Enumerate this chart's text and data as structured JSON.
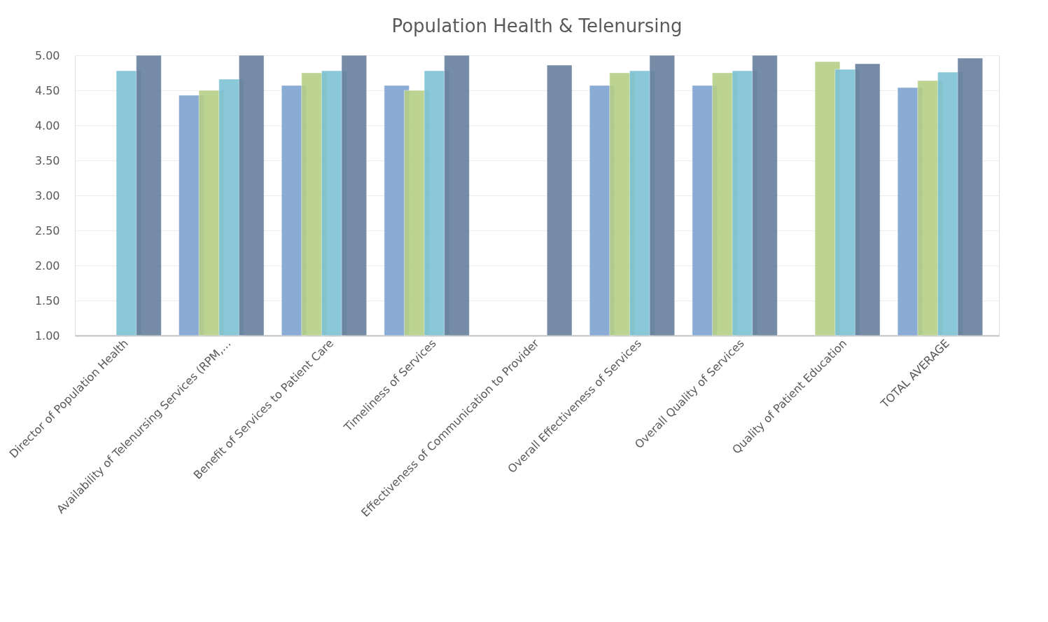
{
  "chart_data": {
    "type": "bar",
    "title": "Population Health & Telenursing",
    "categories": [
      "Director of Population Health",
      "Availability of Telenursing Services (RPM,…",
      "Benefit of Services to Patient Care",
      "Timeliness of Services",
      "Effectiveness of Communication to Provider",
      "Overall Effectiveness of Services",
      "Overall Quality of Services",
      "Quality of Patient Education",
      "TOTAL AVERAGE"
    ],
    "series": [
      {
        "color": "#7ea3d0",
        "values": [
          null,
          4.43,
          4.57,
          4.57,
          null,
          4.57,
          4.57,
          null,
          4.54
        ]
      },
      {
        "color": "#b5cf86",
        "values": [
          null,
          4.5,
          4.75,
          4.5,
          null,
          4.75,
          4.75,
          4.91,
          4.64
        ]
      },
      {
        "color": "#7dc2d5",
        "values": [
          4.78,
          4.66,
          4.78,
          4.78,
          null,
          4.78,
          4.78,
          4.8,
          4.76
        ]
      },
      {
        "color": "#687f9c",
        "values": [
          5.0,
          5.0,
          5.0,
          5.0,
          4.86,
          5.0,
          5.0,
          4.88,
          4.96
        ]
      }
    ],
    "ylim": [
      1,
      5
    ],
    "yticks": [
      {
        "value": 1,
        "label": "1.00"
      },
      {
        "value": 1.5,
        "label": "1.50"
      },
      {
        "value": 2,
        "label": "2.00"
      },
      {
        "value": 2.5,
        "label": "2.50"
      },
      {
        "value": 3,
        "label": "3.00"
      },
      {
        "value": 3.5,
        "label": "3.50"
      },
      {
        "value": 4,
        "label": "4.00"
      },
      {
        "value": 4.5,
        "label": "4.50"
      },
      {
        "value": 5,
        "label": "5.00"
      }
    ],
    "grid": "y"
  }
}
